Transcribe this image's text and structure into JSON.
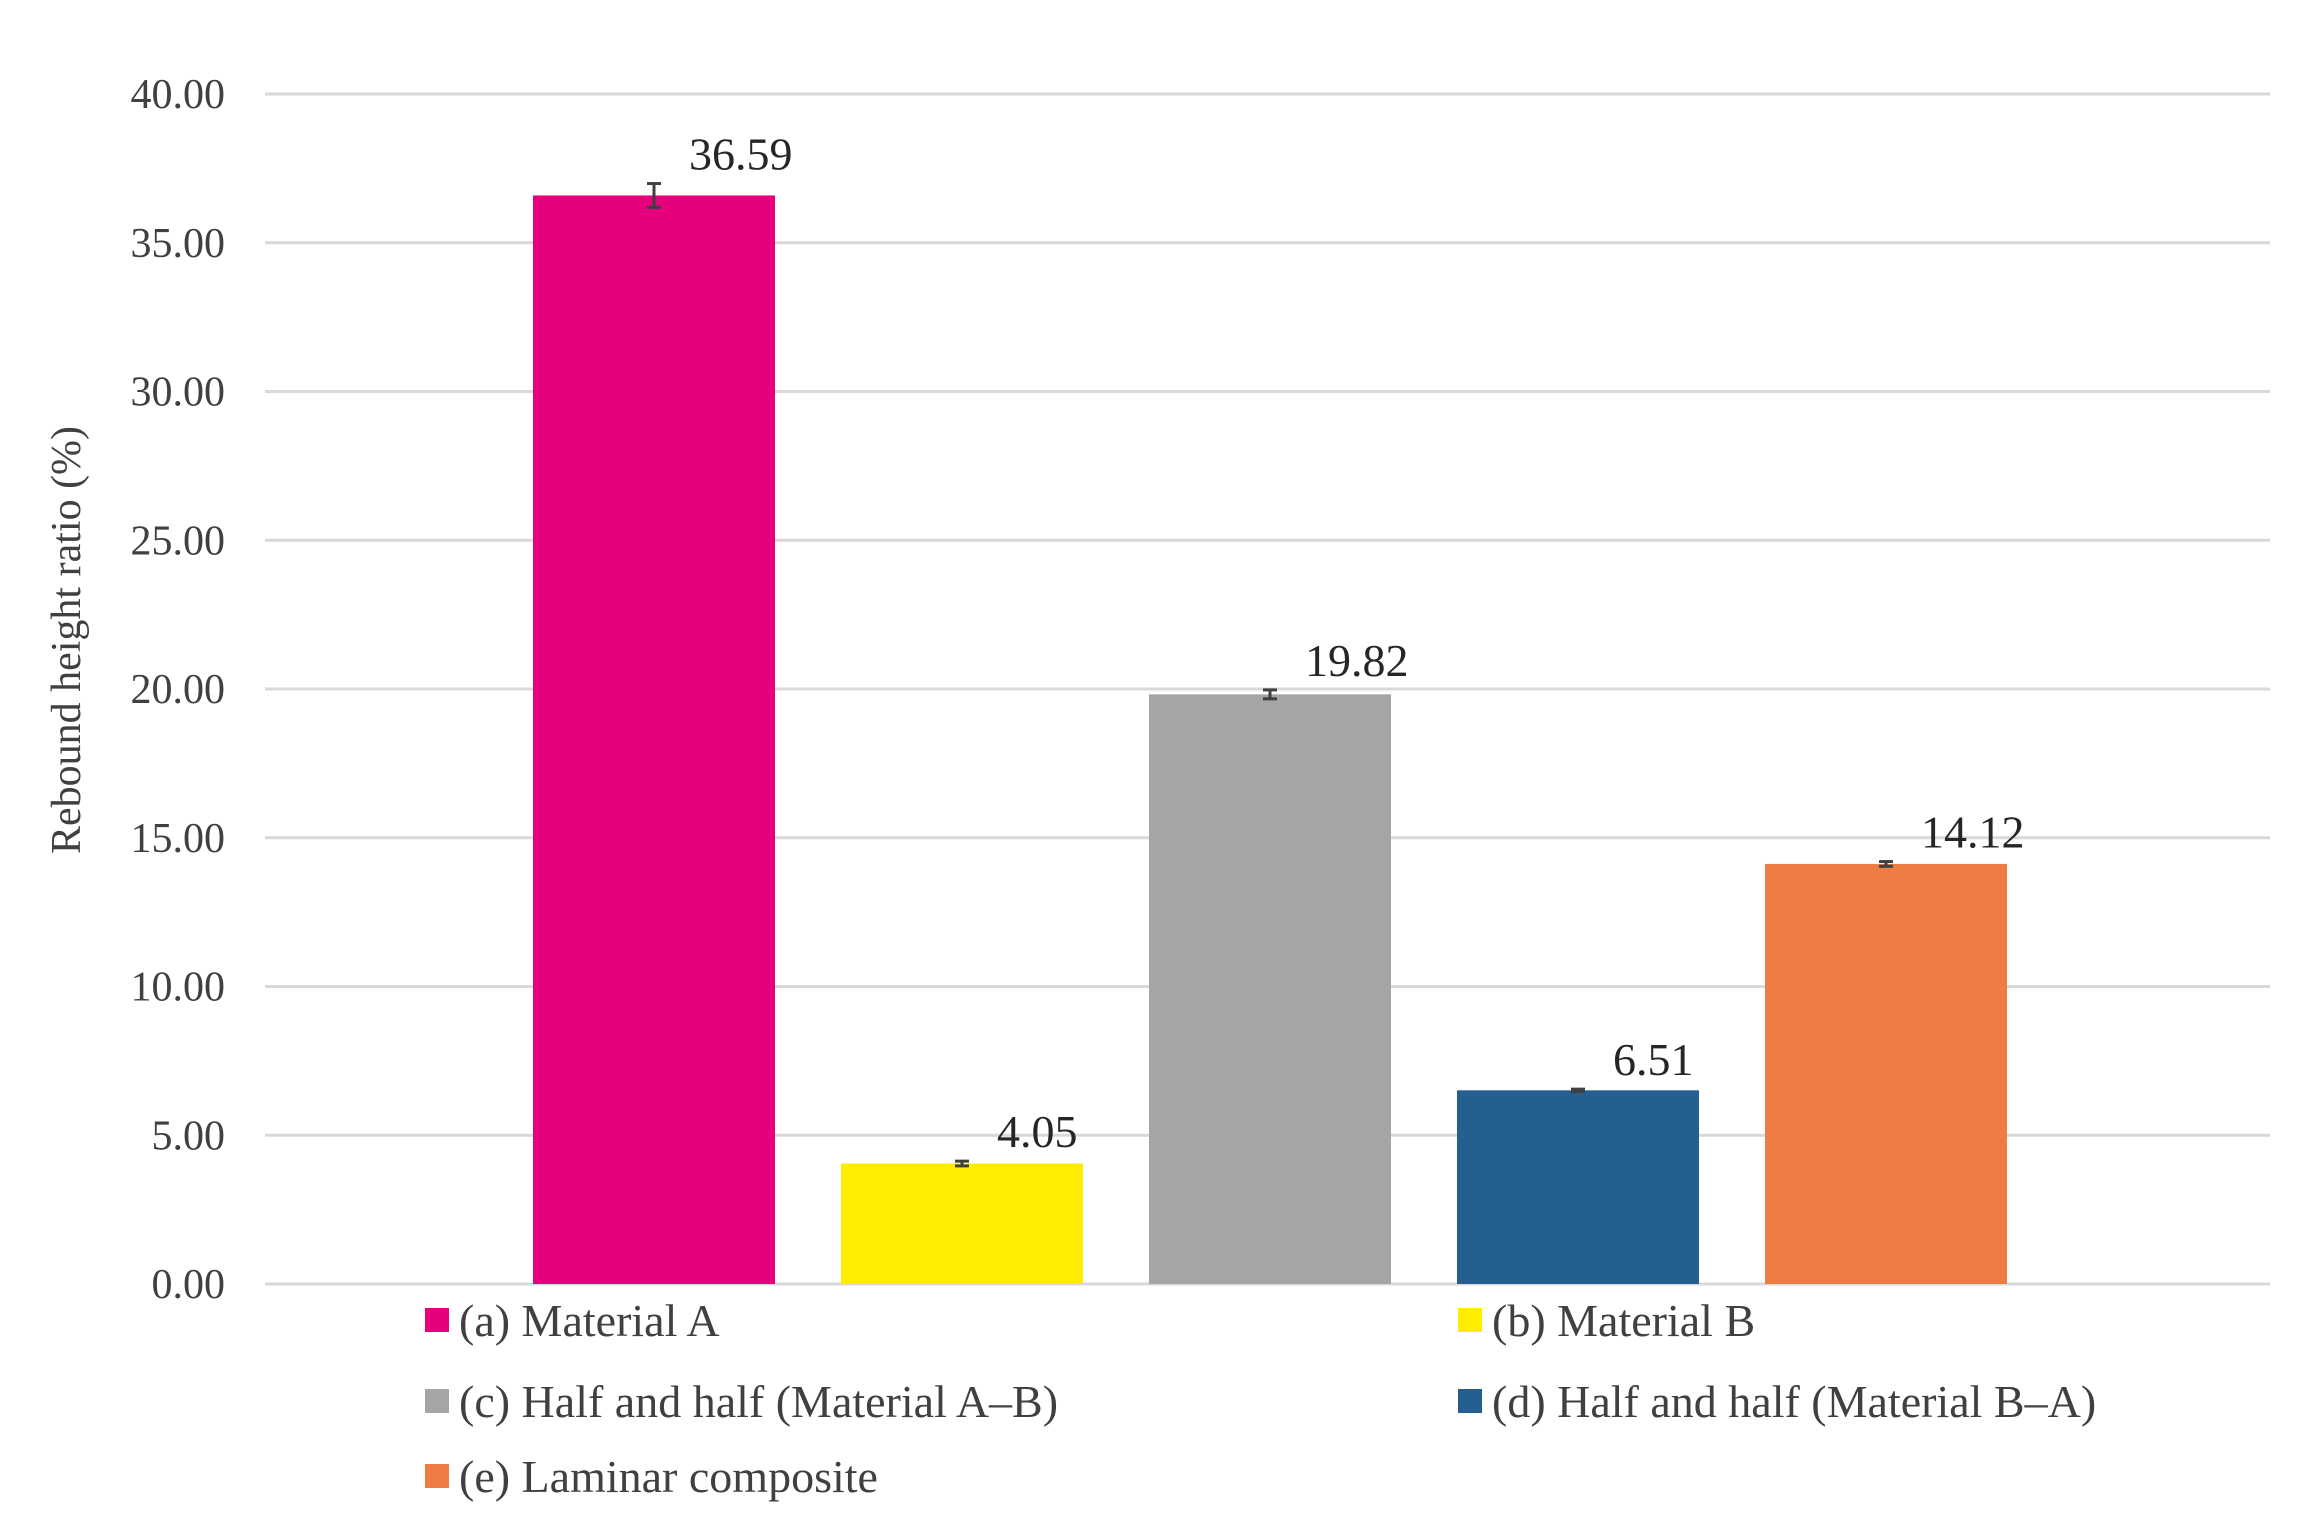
{
  "chart_data": {
    "type": "bar",
    "title": "",
    "xlabel": "",
    "ylabel": "Rebound height ratio (%)",
    "ylim": [
      0,
      40
    ],
    "ytick_step": 5,
    "ytick_labels": [
      "0.00",
      "5.00",
      "10.00",
      "15.00",
      "20.00",
      "25.00",
      "30.00",
      "35.00",
      "40.00"
    ],
    "grid": true,
    "legend_position": "bottom",
    "series": [
      {
        "name": "(a) Material A",
        "value": 36.59,
        "label": "36.59",
        "error": 0.4,
        "color": "#e6007e"
      },
      {
        "name": "(b) Material B",
        "value": 4.05,
        "label": "4.05",
        "error": 0.08,
        "color": "#ffed00"
      },
      {
        "name": "(c) Half and half (Material A–B)",
        "value": 19.82,
        "label": "19.82",
        "error": 0.15,
        "color": "#a5a5a5"
      },
      {
        "name": "(d) Half and half (Material B–A)",
        "value": 6.51,
        "label": "6.51",
        "error": 0.04,
        "color": "#255e91"
      },
      {
        "name": "(e) Laminar composite",
        "value": 14.12,
        "label": "14.12",
        "error": 0.08,
        "color": "#ed7d45"
      }
    ]
  }
}
